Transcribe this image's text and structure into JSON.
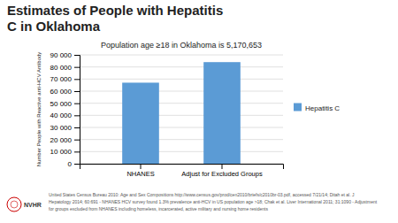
{
  "chart_data": {
    "type": "bar",
    "title": "Estimates of People with Hepatitis\nC in Oklahoma",
    "subtitle": "Population age ≥18 in Oklahoma is 5,170,653",
    "ylabel": "Number People with Reactive anti-HCV Antibody",
    "categories": [
      "NHANES",
      "Adjust for Excluded Groups"
    ],
    "series": [
      {
        "name": "Hepatitis C",
        "color": "#5B9BD5",
        "values": [
          67000,
          84000
        ]
      }
    ],
    "ylim": [
      0,
      90000
    ],
    "yticks": [
      0,
      {
        "value": 10000,
        "label": "10 000"
      },
      {
        "value": 20000,
        "label": "20 000"
      },
      {
        "value": 30000,
        "label": "30 000"
      },
      {
        "value": 40000,
        "label": "40 000"
      },
      {
        "value": 50000,
        "label": "50 000"
      },
      {
        "value": 60000,
        "label": "60 000"
      },
      {
        "value": 70000,
        "label": "70 000"
      },
      {
        "value": 80000,
        "label": "80 000"
      },
      {
        "value": 90000,
        "label": "90 000"
      }
    ],
    "grid": true,
    "legend": "right",
    "annotations": [
      "United States Census Bureau 2010: Age and Sex Compositions http://www.census.gov/prod/cen2010/briefs/c2010br-03.pdf, accessed 7/21/14; Ditah et al. J",
      "Hepatology 2014; 60:691 - NHANES HCV survey found 1.3% prevalence anti-HCV in US population age >18; Chak et al. Liver International 2011; 31:1090 - Adjustment",
      "for groups excluded from NHANES including homeless, incarcerated, active military and nursing home residents",
      "NVHR"
    ]
  }
}
